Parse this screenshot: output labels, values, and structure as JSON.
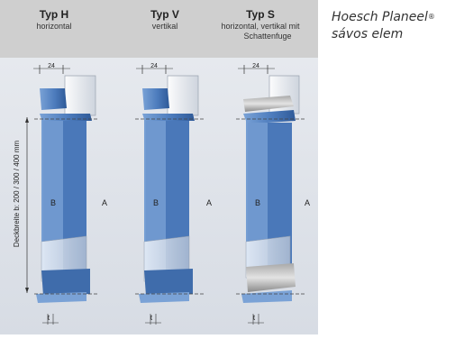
{
  "colors": {
    "header_bg": "#cfcfcf",
    "panel_bg": "#dfe3ea",
    "panel_blue": "#5a86c4",
    "panel_blue_dark": "#2f5a98",
    "panel_blue_light": "#8fb1dd",
    "glass": "#eef1f5",
    "dash": "#444444"
  },
  "columns": [
    {
      "type": "Typ H",
      "orientation": "horizontal",
      "dim_top": "24",
      "dim_bottom": "t",
      "label_b": "B",
      "label_a": "A"
    },
    {
      "type": "Typ V",
      "orientation": "vertikal",
      "dim_top": "24",
      "dim_bottom": "t",
      "label_b": "B",
      "label_a": "A"
    },
    {
      "type": "Typ S",
      "orientation": "horizontal, vertikal mit",
      "orientation_2": "Schattenfuge",
      "dim_top": "24",
      "dim_bottom": "t",
      "label_b": "B",
      "label_a": "A"
    }
  ],
  "side_label": "Deckbreite b: 200 / 300 / 400 mm",
  "caption": {
    "line1": "Hoesch Planeel",
    "reg": "®",
    "line2": "sávos elem"
  }
}
